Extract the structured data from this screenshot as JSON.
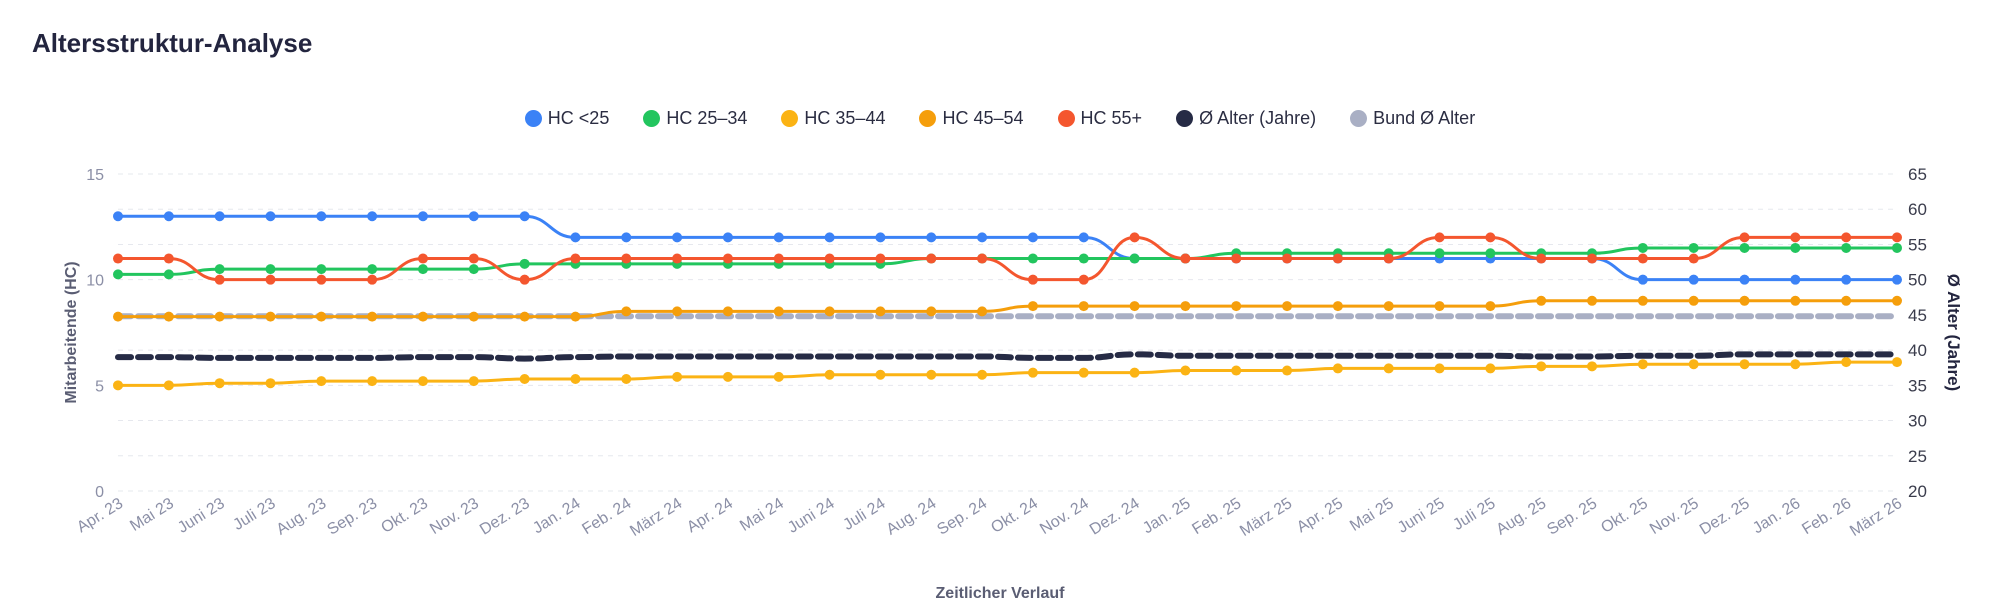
{
  "page": {
    "title": "Altersstruktur-Analyse"
  },
  "chart_data": {
    "type": "line",
    "title": "Altersstruktur-Analyse",
    "xlabel": "Zeitlicher Verlauf",
    "ylabel": "Mitarbeitende (HC)",
    "y2label": "Ø Alter (Jahre)",
    "ylim": [
      0,
      15
    ],
    "y2lim": [
      20,
      65
    ],
    "yticks": [
      "0",
      "5",
      "10",
      "15"
    ],
    "y2ticks": [
      "20",
      "25",
      "30",
      "35",
      "40",
      "45",
      "50",
      "55",
      "60",
      "65"
    ],
    "grid": true,
    "legend": "top-center",
    "categories": [
      "Apr. 23",
      "Mai 23",
      "Juni 23",
      "Juli 23",
      "Aug. 23",
      "Sep. 23",
      "Okt. 23",
      "Nov. 23",
      "Dez. 23",
      "Jan. 24",
      "Feb. 24",
      "März 24",
      "Apr. 24",
      "Mai 24",
      "Juni 24",
      "Juli 24",
      "Aug. 24",
      "Sep. 24",
      "Okt. 24",
      "Nov. 24",
      "Dez. 24",
      "Jan. 25",
      "Feb. 25",
      "März 25",
      "Apr. 25",
      "Mai 25",
      "Juni 25",
      "Juli 25",
      "Aug. 25",
      "Sep. 25",
      "Okt. 25",
      "Nov. 25",
      "Dez. 25",
      "Jan. 26",
      "Feb. 26",
      "März 26"
    ],
    "series": [
      {
        "name": "HC <25",
        "axis": "left",
        "color": "#3b82f6",
        "style": "solid",
        "values": [
          13,
          13,
          13,
          13,
          13,
          13,
          13,
          13,
          13,
          12,
          12,
          12,
          12,
          12,
          12,
          12,
          12,
          12,
          12,
          12,
          11,
          11,
          11,
          11,
          11,
          11,
          11,
          11,
          11,
          11,
          10,
          10,
          10,
          10,
          10,
          10
        ]
      },
      {
        "name": "HC 25–34",
        "axis": "left",
        "color": "#22c55e",
        "style": "solid",
        "values": [
          10.25,
          10.25,
          10.5,
          10.5,
          10.5,
          10.5,
          10.5,
          10.5,
          10.75,
          10.75,
          10.75,
          10.75,
          10.75,
          10.75,
          10.75,
          10.75,
          11,
          11,
          11,
          11,
          11,
          11,
          11.25,
          11.25,
          11.25,
          11.25,
          11.25,
          11.25,
          11.25,
          11.25,
          11.5,
          11.5,
          11.5,
          11.5,
          11.5,
          11.5
        ]
      },
      {
        "name": "HC 35–44",
        "axis": "left",
        "color": "#fbb314",
        "style": "solid",
        "values": [
          5.0,
          5.0,
          5.1,
          5.1,
          5.2,
          5.2,
          5.2,
          5.2,
          5.3,
          5.3,
          5.3,
          5.4,
          5.4,
          5.4,
          5.5,
          5.5,
          5.5,
          5.5,
          5.6,
          5.6,
          5.6,
          5.7,
          5.7,
          5.7,
          5.8,
          5.8,
          5.8,
          5.8,
          5.9,
          5.9,
          6.0,
          6.0,
          6.0,
          6.0,
          6.1,
          6.1
        ]
      },
      {
        "name": "HC 45–54",
        "axis": "left",
        "color": "#f59e0b",
        "style": "solid",
        "values": [
          8.25,
          8.25,
          8.25,
          8.25,
          8.25,
          8.25,
          8.25,
          8.25,
          8.25,
          8.25,
          8.5,
          8.5,
          8.5,
          8.5,
          8.5,
          8.5,
          8.5,
          8.5,
          8.75,
          8.75,
          8.75,
          8.75,
          8.75,
          8.75,
          8.75,
          8.75,
          8.75,
          8.75,
          9,
          9,
          9,
          9,
          9,
          9,
          9,
          9
        ]
      },
      {
        "name": "HC 55+",
        "axis": "left",
        "color": "#f4562e",
        "style": "solid",
        "values": [
          11,
          11,
          10,
          10,
          10,
          10,
          11,
          11,
          10,
          11,
          11,
          11,
          11,
          11,
          11,
          11,
          11,
          11,
          10,
          10,
          12,
          11,
          11,
          11,
          11,
          11,
          12,
          12,
          11,
          11,
          11,
          11,
          12,
          12,
          12,
          12
        ]
      },
      {
        "name": "Ø Alter (Jahre)",
        "axis": "right",
        "color": "#262b45",
        "style": "dashed",
        "values": [
          39.0,
          39.0,
          38.9,
          38.9,
          38.9,
          38.9,
          39.0,
          39.0,
          38.8,
          39.0,
          39.1,
          39.1,
          39.1,
          39.1,
          39.1,
          39.1,
          39.1,
          39.1,
          38.9,
          38.9,
          39.4,
          39.2,
          39.2,
          39.2,
          39.2,
          39.2,
          39.2,
          39.2,
          39.1,
          39.1,
          39.2,
          39.2,
          39.4,
          39.4,
          39.4,
          39.4
        ]
      },
      {
        "name": "Bund Ø Alter",
        "axis": "right",
        "color": "#a9afc4",
        "style": "dashed",
        "values": [
          44.8,
          44.8,
          44.8,
          44.8,
          44.8,
          44.8,
          44.8,
          44.8,
          44.8,
          44.8,
          44.8,
          44.8,
          44.8,
          44.8,
          44.8,
          44.8,
          44.8,
          44.8,
          44.8,
          44.8,
          44.8,
          44.8,
          44.8,
          44.8,
          44.8,
          44.8,
          44.8,
          44.8,
          44.8,
          44.8,
          44.8,
          44.8,
          44.8,
          44.8,
          44.8,
          44.8
        ]
      }
    ]
  }
}
